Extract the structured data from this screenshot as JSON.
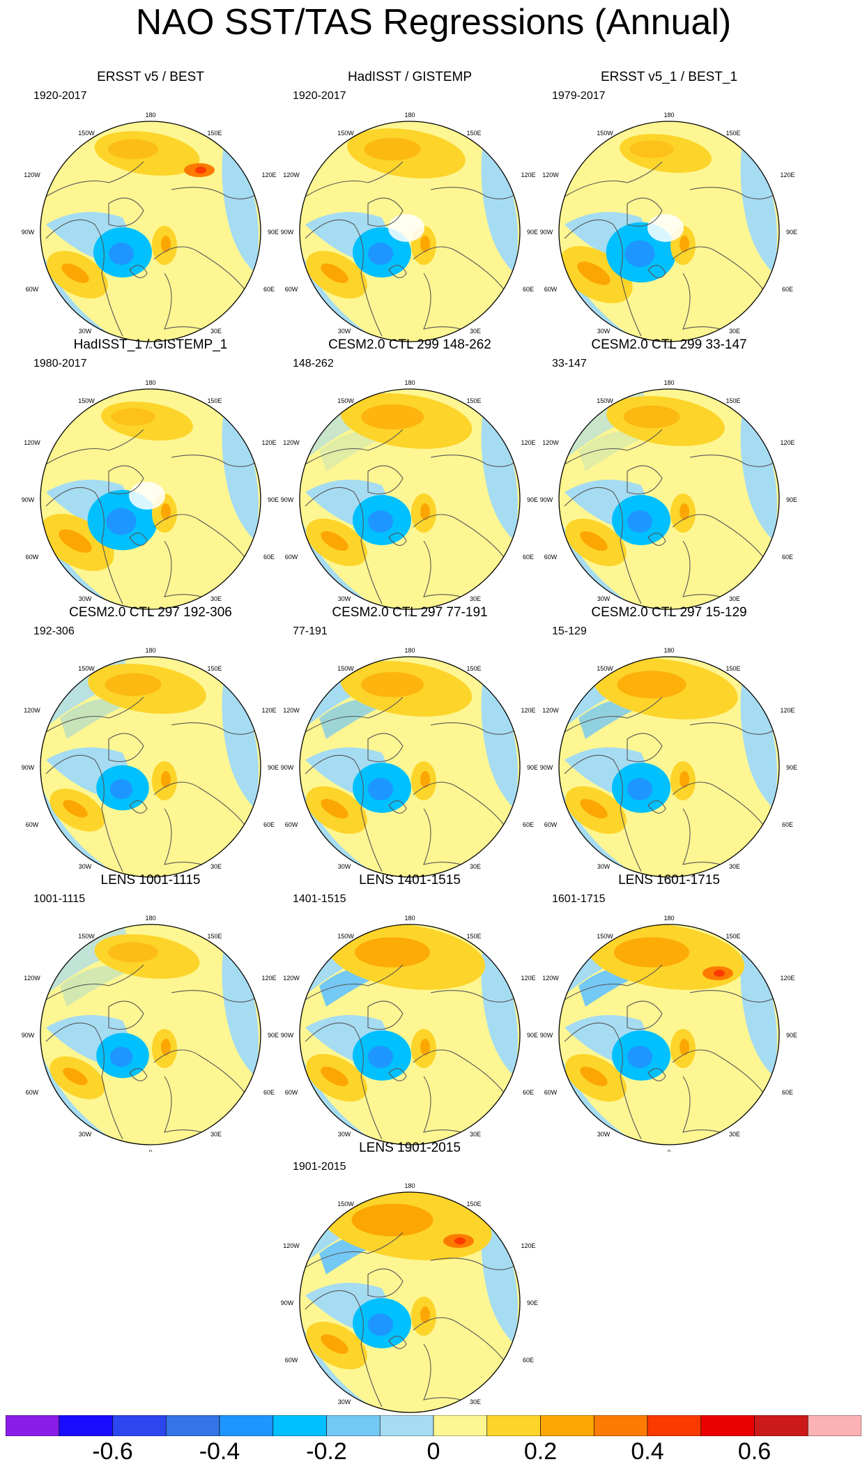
{
  "title": "NAO SST/TAS Regressions (Annual)",
  "lon_labels": {
    "lon_180": "180",
    "lon_150e": "150E",
    "lon_120e": "120E",
    "lon_90e": "90E",
    "lon_60e": "60E",
    "lon_30e": "30E",
    "lon_0": "0",
    "lon_30w": "30W",
    "lon_60w": "60W",
    "lon_90w": "90W",
    "lon_120w": "120W",
    "lon_150w": "150W"
  },
  "panels": [
    {
      "title": "ERSST v5 / BEST",
      "years": "1920-2017"
    },
    {
      "title": "HadISST / GISTEMP",
      "years": "1920-2017"
    },
    {
      "title": "ERSST v5_1 / BEST_1",
      "years": "1979-2017"
    },
    {
      "title": "HadISST_1 / GISTEMP_1",
      "years": "1980-2017"
    },
    {
      "title": "CESM2.0 CTL 299 148-262",
      "years": "148-262"
    },
    {
      "title": "CESM2.0 CTL 299 33-147",
      "years": "33-147"
    },
    {
      "title": "CESM2.0 CTL 297 192-306",
      "years": "192-306"
    },
    {
      "title": "CESM2.0 CTL 297 77-191",
      "years": "77-191"
    },
    {
      "title": "CESM2.0 CTL 297 15-129",
      "years": "15-129"
    },
    {
      "title": "LENS 1001-1115",
      "years": "1001-1115"
    },
    {
      "title": "LENS 1401-1515",
      "years": "1401-1515"
    },
    {
      "title": "LENS 1601-1715",
      "years": "1601-1715"
    },
    {
      "title": "LENS 1901-2015",
      "years": "1901-2015"
    }
  ],
  "colorbar": {
    "colors": [
      "#8a1ee8",
      "#1a0dff",
      "#2c46f0",
      "#3574e8",
      "#1e96ff",
      "#00c0ff",
      "#74c8f4",
      "#a6dcf2",
      "#fdf692",
      "#fdd42a",
      "#fca603",
      "#fc7b00",
      "#fc3a00",
      "#eb0000",
      "#cc1a1a",
      "#fbb2b2"
    ],
    "ticks": [
      "-0.6",
      "-0.4",
      "-0.2",
      "0",
      "0.2",
      "0.4",
      "0.6"
    ]
  },
  "chart_data": {
    "type": "heatmap",
    "title": "NAO SST/TAS Regressions (Annual)",
    "projection": "north-polar-stereographic",
    "variable": "SST/TAS regression onto NAO index",
    "contour_levels": [
      -0.7,
      -0.6,
      -0.5,
      -0.4,
      -0.3,
      -0.2,
      -0.1,
      0,
      0.1,
      0.2,
      0.3,
      0.4,
      0.5,
      0.6,
      0.7
    ],
    "colorbar_ticks": [
      -0.6,
      -0.4,
      -0.2,
      0,
      0.2,
      0.4,
      0.6
    ],
    "panel_count": 13
  }
}
